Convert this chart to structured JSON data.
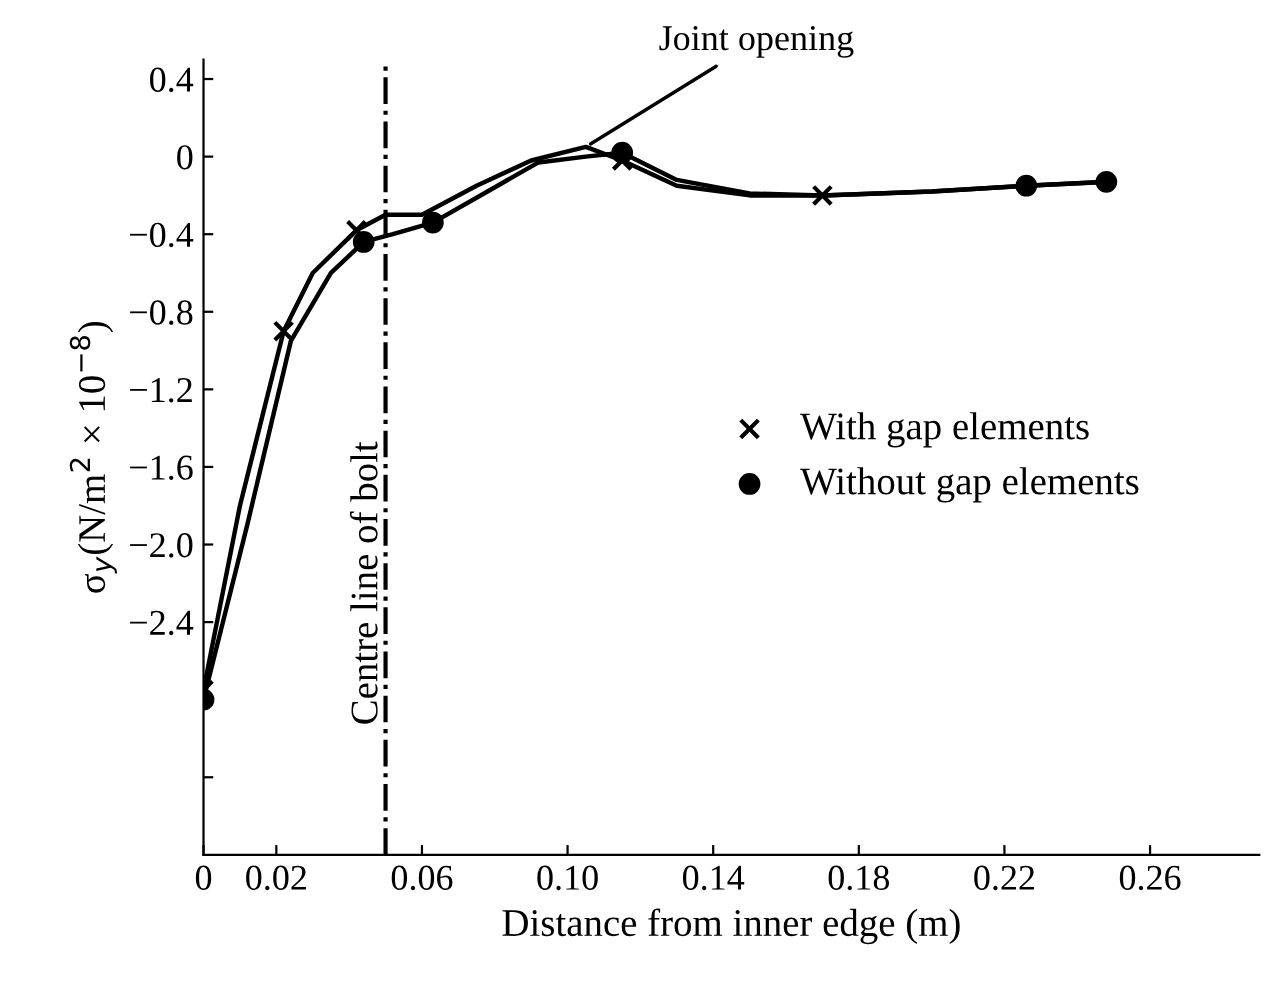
{
  "chart_data": {
    "type": "line",
    "xlabel": "Distance from inner edge (m)",
    "ylabel": "σ$_{y}$(N/m$^{2}$ × 10$^{−8}$)",
    "xlim": [
      0,
      0.29
    ],
    "xticks": [
      0,
      0.02,
      0.06,
      {
        "value": 0.1,
        "label": "0.10"
      },
      0.14,
      0.18,
      0.22,
      0.26
    ],
    "ylim": [
      -3.6,
      0.5
    ],
    "yticks": [
      0.4,
      0,
      -0.4,
      -0.8,
      -1.2,
      -1.6,
      {
        "value": -2,
        "label": "−2.0"
      },
      -2.4,
      {
        "value": -2.8,
        "label": null
      },
      {
        "value": -3.2,
        "label": null
      }
    ],
    "grid": false,
    "legend": "right",
    "line_style": "solid",
    "series": [
      {
        "marker": "none",
        "color": "#000000",
        "x": [
          0,
          0.01,
          0.022,
          0.03,
          0.042,
          0.05,
          0.06,
          0.075,
          0.09,
          0.105,
          0.115,
          0.13,
          0.15,
          0.17,
          0.2,
          0.226,
          0.248
        ],
        "values": [
          -2.75,
          -1.8,
          -0.9,
          -0.6,
          -0.38,
          -0.3,
          -0.3,
          -0.15,
          -0.02,
          0.05,
          -0.02,
          -0.15,
          -0.2,
          -0.2,
          -0.18,
          -0.15,
          -0.13
        ]
      },
      {
        "marker": "none",
        "color": "#000000",
        "x": [
          0,
          0.012,
          0.024,
          0.035,
          0.044,
          0.052,
          0.063,
          0.078,
          0.092,
          0.105,
          0.115,
          0.13,
          0.15,
          0.17,
          0.2,
          0.226,
          0.248
        ],
        "values": [
          -2.8,
          -1.9,
          -0.95,
          -0.6,
          -0.44,
          -0.4,
          -0.34,
          -0.18,
          -0.03,
          0.0,
          0.02,
          -0.12,
          -0.19,
          -0.2,
          -0.18,
          -0.15,
          -0.13
        ]
      },
      {
        "type": "scatter",
        "name": "With gap elements",
        "marker": "cross",
        "color": "#000000",
        "x": [
          0,
          0.022,
          0.042,
          0.115,
          0.17
        ],
        "values": [
          -2.75,
          -0.9,
          -0.38,
          -0.02,
          -0.2
        ]
      },
      {
        "type": "scatter",
        "name": "Without gap elements",
        "marker": "circle",
        "color": "#000000",
        "x": [
          0,
          0.044,
          0.063,
          0.115,
          0.226,
          0.248
        ],
        "values": [
          -2.8,
          -0.44,
          -0.34,
          0.02,
          -0.15,
          -0.13
        ]
      }
    ],
    "ref_lines": [
      {
        "axis": "x",
        "value": 0.05,
        "label": "Centre line of bolt",
        "line_style": "dashdot",
        "color": "#000000"
      }
    ],
    "annotations": [
      {
        "text": "Joint opening",
        "x": 0.105,
        "y": 0.05
      }
    ]
  }
}
